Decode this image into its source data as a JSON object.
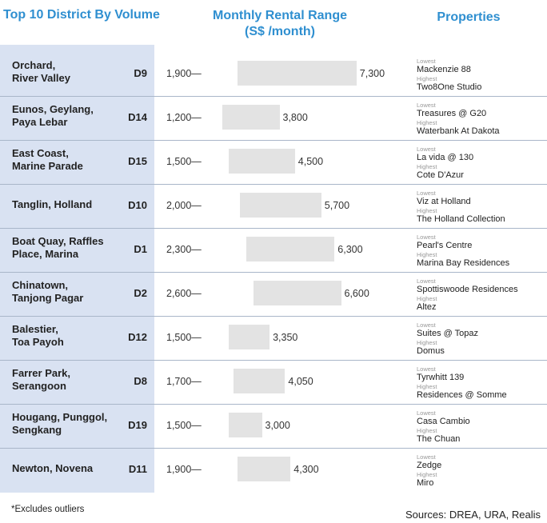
{
  "headers": {
    "district": "Top 10 District By Volume",
    "range_line1": "Monthly Rental Range",
    "range_line2": "(S$ /month)",
    "properties": "Properties"
  },
  "property_labels": {
    "lowest": "Lowest",
    "highest": "Highest"
  },
  "footnote": "*Excludes outliers",
  "sources": "Sources: DREA, URA, Realis",
  "chart_data": {
    "type": "bar",
    "subtype": "range",
    "title": "Monthly Rental Range",
    "unit": "(S$ /month)",
    "categories": [
      "Orchard, River Valley",
      "Eunos, Geylang, Paya Lebar",
      "East Coast, Marine Parade",
      "Tanglin, Holland",
      "Boat Quay, Raffles Place, Marina",
      "Chinatown, Tanjong Pagar",
      "Balestier, Toa Payoh",
      "Farrer Park, Serangoon",
      "Hougang, Punggol, Sengkang",
      "Newton, Novena"
    ],
    "rows": [
      {
        "name_lines": [
          "Orchard,",
          "River Valley"
        ],
        "code": "D9",
        "min": 1900,
        "max": 7300,
        "min_label": "1,900",
        "max_label": "7,300",
        "lowest": "Mackenzie 88",
        "highest": "Two8One Studio"
      },
      {
        "name_lines": [
          "Eunos, Geylang,",
          "Paya Lebar"
        ],
        "code": "D14",
        "min": 1200,
        "max": 3800,
        "min_label": "1,200",
        "max_label": "3,800",
        "lowest": "Treasures @ G20",
        "highest": "Waterbank At Dakota"
      },
      {
        "name_lines": [
          "East Coast,",
          "Marine Parade"
        ],
        "code": "D15",
        "min": 1500,
        "max": 4500,
        "min_label": "1,500",
        "max_label": "4,500",
        "lowest": "La vida @ 130",
        "highest": "Cote D'Azur"
      },
      {
        "name_lines": [
          "Tanglin, Holland"
        ],
        "code": "D10",
        "min": 2000,
        "max": 5700,
        "min_label": "2,000",
        "max_label": "5,700",
        "lowest": "Viz at Holland",
        "highest": "The Holland Collection"
      },
      {
        "name_lines": [
          "Boat Quay, Raffles",
          "Place, Marina"
        ],
        "code": "D1",
        "min": 2300,
        "max": 6300,
        "min_label": "2,300",
        "max_label": "6,300",
        "lowest": "Pearl's Centre",
        "highest": "Marina Bay Residences"
      },
      {
        "name_lines": [
          "Chinatown,",
          "Tanjong Pagar"
        ],
        "code": "D2",
        "min": 2600,
        "max": 6600,
        "min_label": "2,600",
        "max_label": "6,600",
        "lowest": "Spottiswoode Residences",
        "highest": "Altez"
      },
      {
        "name_lines": [
          "Balestier,",
          "Toa Payoh"
        ],
        "code": "D12",
        "min": 1500,
        "max": 3350,
        "min_label": "1,500",
        "max_label": "3,350",
        "lowest": "Suites @ Topaz",
        "highest": "Domus"
      },
      {
        "name_lines": [
          "Farrer Park,",
          "Serangoon"
        ],
        "code": "D8",
        "min": 1700,
        "max": 4050,
        "min_label": "1,700",
        "max_label": "4,050",
        "lowest": "Tyrwhitt 139",
        "highest": "Residences @ Somme"
      },
      {
        "name_lines": [
          "Hougang, Punggol,",
          "Sengkang"
        ],
        "code": "D19",
        "min": 1500,
        "max": 3000,
        "min_label": "1,500",
        "max_label": "3,000",
        "lowest": "Casa Cambio",
        "highest": "The Chuan"
      },
      {
        "name_lines": [
          "Newton, Novena"
        ],
        "code": "D11",
        "min": 1900,
        "max": 4300,
        "min_label": "1,900",
        "max_label": "4,300",
        "lowest": "Zedge",
        "highest": "Miro"
      }
    ],
    "colors": {
      "header": "#2f8fd0",
      "bar": "#e3e3e3",
      "district_bg": "#d9e2f2"
    }
  }
}
